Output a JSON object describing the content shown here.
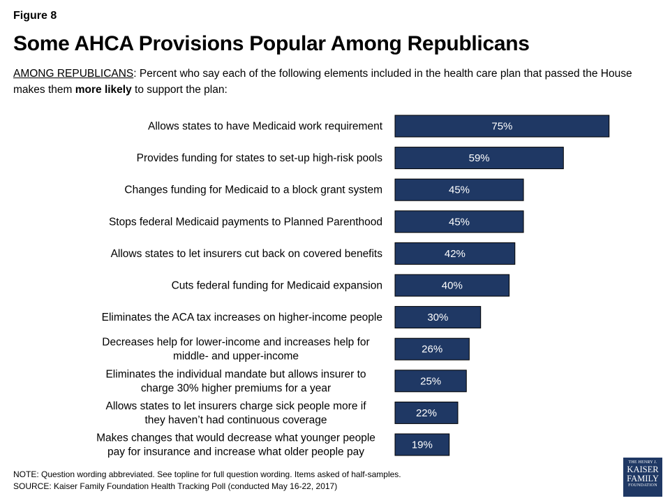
{
  "figure_label": "Figure 8",
  "title": "Some AHCA Provisions Popular Among Republicans",
  "subtitle": {
    "lead": "AMONG REPUBLICANS",
    "part1": ": Percent who say each of the following elements included in the health care plan that passed the House makes them ",
    "bold": "more likely",
    "part2": " to support the plan:"
  },
  "chart_data": {
    "type": "bar",
    "orientation": "horizontal",
    "categories": [
      [
        "Allows states to have Medicaid work requirement"
      ],
      [
        "Provides funding for states to set-up high-risk pools"
      ],
      [
        "Changes funding for Medicaid to a block grant system"
      ],
      [
        "Stops federal Medicaid payments to Planned Parenthood"
      ],
      [
        "Allows states to let insurers cut back on covered benefits"
      ],
      [
        "Cuts federal funding for Medicaid expansion"
      ],
      [
        "Eliminates the ACA tax increases on higher-income people"
      ],
      [
        "Decreases help for lower-income and increases help for",
        "middle- and upper-income"
      ],
      [
        "Eliminates the individual mandate but allows insurer to",
        "charge 30% higher premiums for a year"
      ],
      [
        "Allows states to let insurers charge sick people more if",
        "they haven’t had continuous coverage"
      ],
      [
        "Makes changes that would decrease what younger people",
        "pay for insurance and increase what older people pay"
      ]
    ],
    "values": [
      75,
      59,
      45,
      45,
      42,
      40,
      30,
      26,
      25,
      22,
      19
    ],
    "data_labels": [
      "75%",
      "59%",
      "45%",
      "45%",
      "42%",
      "40%",
      "30%",
      "26%",
      "25%",
      "22%",
      "19%"
    ],
    "xlim": [
      0,
      100
    ],
    "bar_color": "#1f3864",
    "label_color": "#ffffff"
  },
  "footer": {
    "note": "NOTE: Question wording abbreviated. See topline for full question wording. Items asked of half-samples.",
    "source": "SOURCE: Kaiser Family Foundation Health Tracking Poll (conducted May 16-22, 2017)"
  },
  "logo": {
    "line1": "THE HENRY J.",
    "line2": "KAISER",
    "line3": "FAMILY",
    "line4": "FOUNDATION"
  }
}
